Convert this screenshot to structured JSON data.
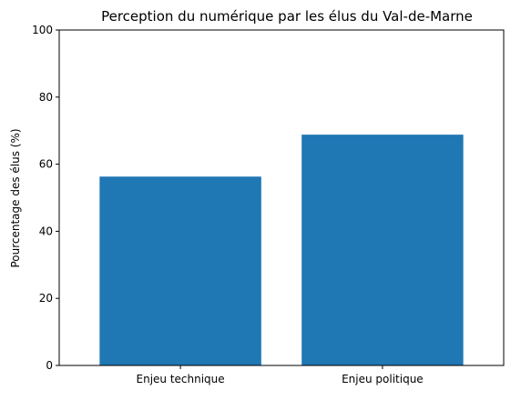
{
  "chart_data": {
    "type": "bar",
    "title": "Perception du numérique par les élus du Val-de-Marne",
    "xlabel": "",
    "ylabel": "Pourcentage des élus (%)",
    "categories": [
      "Enjeu technique",
      "Enjeu politique"
    ],
    "values": [
      56.3,
      68.8
    ],
    "ylim": [
      0,
      100
    ],
    "yticks": [
      "0",
      "20",
      "40",
      "60",
      "80",
      "100"
    ],
    "grid": false,
    "legend": "none",
    "bar_color": "#1f77b4"
  }
}
